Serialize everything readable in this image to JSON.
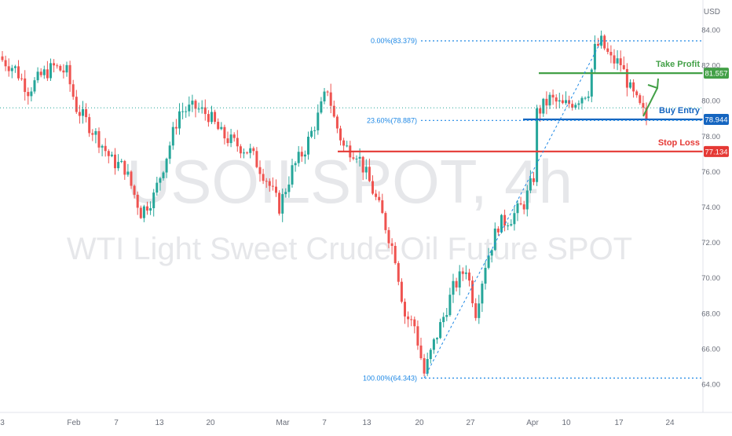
{
  "chart_data": {
    "type": "candlestick",
    "watermark": {
      "symbol": "USOILSPOT, 4h",
      "description": "WTI Light Sweet Crude Oil Future SPOT"
    },
    "currency": "USD",
    "yaxis": {
      "min": 63.0,
      "max": 85.0,
      "ticks": [
        64.0,
        66.0,
        68.0,
        70.0,
        72.0,
        74.0,
        76.0,
        78.0,
        80.0,
        82.0,
        84.0
      ]
    },
    "xaxis": {
      "ticks": [
        "3",
        "Feb",
        "7",
        "13",
        "20",
        "Mar",
        "7",
        "13",
        "20",
        "27",
        "Apr",
        "10",
        "17",
        "24"
      ]
    },
    "close_path": [
      [
        0,
        82.3
      ],
      [
        4,
        81.8
      ],
      [
        8,
        80.6
      ],
      [
        12,
        81.4
      ],
      [
        16,
        81.9
      ],
      [
        20,
        81.6
      ],
      [
        23,
        79.6
      ],
      [
        27,
        78.6
      ],
      [
        30,
        77.8
      ],
      [
        34,
        76.6
      ],
      [
        38,
        76.2
      ],
      [
        43,
        73.7
      ],
      [
        47,
        74.6
      ],
      [
        51,
        76.9
      ],
      [
        55,
        79.4
      ],
      [
        60,
        79.6
      ],
      [
        64,
        79.2
      ],
      [
        68,
        78.1
      ],
      [
        72,
        77.6
      ],
      [
        77,
        77.1
      ],
      [
        82,
        75.6
      ],
      [
        86,
        74.0
      ],
      [
        90,
        76.1
      ],
      [
        94,
        77.3
      ],
      [
        98,
        79.1
      ],
      [
        101,
        80.7
      ],
      [
        103,
        79.0
      ],
      [
        106,
        77.4
      ],
      [
        110,
        77.1
      ],
      [
        114,
        75.4
      ],
      [
        118,
        73.5
      ],
      [
        122,
        71.2
      ],
      [
        125,
        67.9
      ],
      [
        128,
        67.3
      ],
      [
        131,
        64.6
      ],
      [
        134,
        66.3
      ],
      [
        137,
        67.8
      ],
      [
        140,
        69.4
      ],
      [
        144,
        70.6
      ],
      [
        147,
        68.1
      ],
      [
        150,
        70.8
      ],
      [
        154,
        73.0
      ],
      [
        158,
        73.4
      ],
      [
        162,
        74.2
      ],
      [
        165,
        75.7
      ],
      [
        166,
        79.3
      ],
      [
        170,
        80.1
      ],
      [
        174,
        79.7
      ],
      [
        178,
        80.0
      ],
      [
        182,
        80.6
      ],
      [
        184,
        82.9
      ],
      [
        186,
        83.3
      ],
      [
        189,
        82.3
      ],
      [
        192,
        82.1
      ],
      [
        195,
        80.6
      ],
      [
        198,
        79.6
      ],
      [
        200,
        79.0
      ]
    ],
    "lines": [
      {
        "label": "Take Profit",
        "price": 81.557,
        "price_label": "81.557",
        "color": "#43a047"
      },
      {
        "label": "Buy Entry",
        "price": 78.944,
        "price_label": "78.944",
        "color": "#1565c0"
      },
      {
        "label": "Stop Loss",
        "price": 77.134,
        "price_label": "77.134",
        "color": "#e53935"
      }
    ],
    "fibonacci": [
      {
        "label": "0.00%(83.379)",
        "price": 83.379
      },
      {
        "label": "23.60%(78.887)",
        "price": 78.887
      },
      {
        "label": "100.00%(64.343)",
        "price": 64.343
      }
    ],
    "current_price_line": 79.6,
    "colors": {
      "up": "#26a69a",
      "down": "#ef5350",
      "fib": "#1e88e5",
      "grid_text": "#6b6f7a"
    }
  }
}
